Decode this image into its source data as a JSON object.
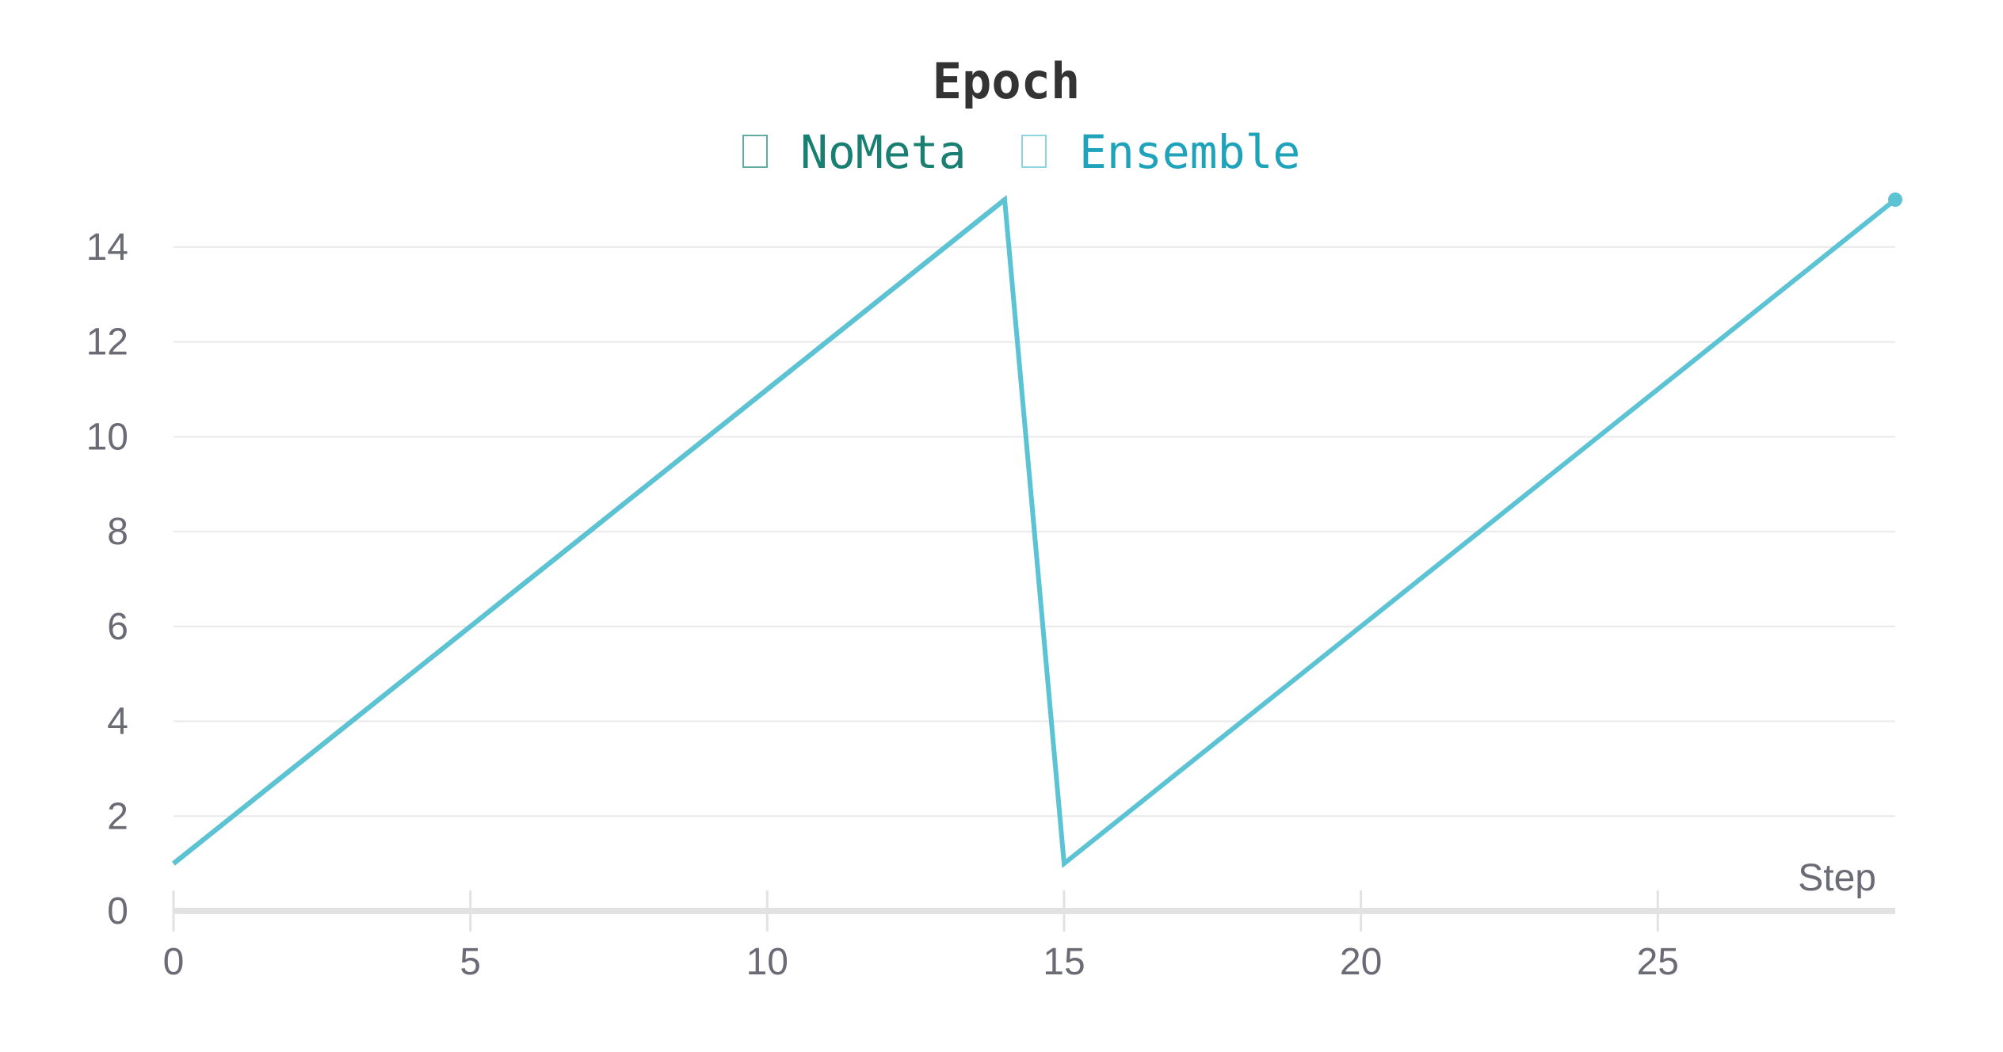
{
  "chart_data": {
    "type": "line",
    "title": "Epoch",
    "xlabel": "Step",
    "ylabel": "",
    "xlim": [
      0,
      29
    ],
    "ylim": [
      0,
      15
    ],
    "x_ticks": [
      "0",
      "5",
      "10",
      "15",
      "20",
      "25"
    ],
    "y_ticks": [
      "0",
      "2",
      "4",
      "6",
      "8",
      "10",
      "12",
      "14"
    ],
    "grid": true,
    "legend_position": "top-center",
    "series": [
      {
        "name": "NoMeta",
        "color": "#1a8a7a",
        "x": [
          0,
          1,
          2,
          3,
          4,
          5,
          6,
          7,
          8,
          9,
          10,
          11,
          12,
          13,
          14
        ],
        "y": [
          1,
          2,
          3,
          4,
          5,
          6,
          7,
          8,
          9,
          10,
          11,
          12,
          13,
          14,
          15
        ]
      },
      {
        "name": "Ensemble",
        "color": "#5bc3d3",
        "x": [
          0,
          1,
          2,
          3,
          4,
          5,
          6,
          7,
          8,
          9,
          10,
          11,
          12,
          13,
          14,
          15,
          16,
          17,
          18,
          19,
          20,
          21,
          22,
          23,
          24,
          25,
          26,
          27,
          28,
          29
        ],
        "y": [
          1,
          2,
          3,
          4,
          5,
          6,
          7,
          8,
          9,
          10,
          11,
          12,
          13,
          14,
          15,
          1,
          2,
          3,
          4,
          5,
          6,
          7,
          8,
          9,
          10,
          11,
          12,
          13,
          14,
          15
        ]
      }
    ]
  },
  "legend_text_colors": [
    "#1a7f73",
    "#1ea3bb"
  ]
}
